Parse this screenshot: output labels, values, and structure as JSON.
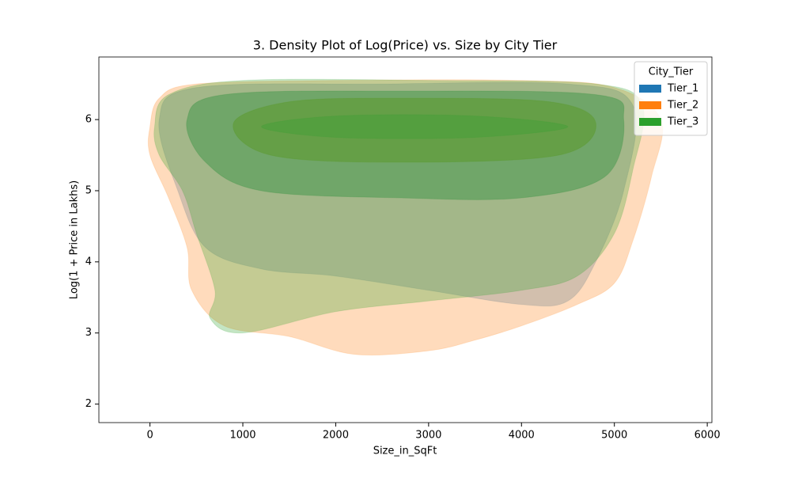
{
  "chart_data": {
    "type": "kde",
    "title": "3. Density Plot of Log(Price) vs. Size by City Tier",
    "xlabel": "Size_in_SqFt",
    "ylabel": "Log(1 + Price in Lakhs)",
    "xlim": [
      -550,
      6050
    ],
    "ylim": [
      1.74,
      6.88
    ],
    "xticks": [
      0,
      1000,
      2000,
      3000,
      4000,
      5000,
      6000
    ],
    "yticks": [
      2,
      3,
      4,
      5,
      6
    ],
    "legend": "upper right",
    "legend_title": "City_Tier",
    "series": [
      {
        "name": "Tier_1",
        "color": "#1f77b4",
        "levels": [
          {
            "x": [
              100,
              500,
              2500,
              4500,
              5200,
              5100,
              4800,
              4500,
              4000,
              3000,
              2000,
              1200,
              600,
              300
            ],
            "y": [
              6.0,
              6.45,
              6.5,
              6.5,
              6.2,
              5.0,
              4.0,
              3.45,
              3.4,
              3.6,
              3.8,
              3.9,
              4.2,
              5.0
            ]
          },
          {
            "x": [
              400,
              800,
              2700,
              4800,
              5100,
              4900,
              4000,
              2700,
              1200,
              600
            ],
            "y": [
              6.0,
              6.35,
              6.4,
              6.35,
              6.0,
              5.2,
              4.9,
              4.9,
              5.0,
              5.4
            ]
          }
        ]
      },
      {
        "name": "Tier_2",
        "color": "#ff7f0e",
        "levels": [
          {
            "x": [
              0,
              100,
              500,
              2000,
              4000,
              5000,
              5500,
              5400,
              5200,
              5000,
              4600,
              4000,
              3500,
              3000,
              2200,
              1500,
              800,
              450,
              400,
              200,
              0
            ],
            "y": [
              5.9,
              6.3,
              6.5,
              6.55,
              6.55,
              6.45,
              6.0,
              5.2,
              4.3,
              3.7,
              3.4,
              3.1,
              2.9,
              2.75,
              2.7,
              2.95,
              3.1,
              3.6,
              4.2,
              4.9,
              5.5
            ]
          },
          {
            "x": [
              900,
              1500,
              2700,
              4300,
              4800,
              4400,
              2700,
              1300
            ],
            "y": [
              5.95,
              6.25,
              6.3,
              6.25,
              5.95,
              5.5,
              5.4,
              5.5
            ]
          }
        ]
      },
      {
        "name": "Tier_3",
        "color": "#2ca02c",
        "levels": [
          {
            "x": [
              50,
              200,
              1000,
              3000,
              4800,
              5300,
              5200,
              5000,
              4600,
              4000,
              3000,
              2000,
              1000,
              650,
              700,
              500,
              350,
              100
            ],
            "y": [
              5.9,
              6.35,
              6.55,
              6.55,
              6.5,
              6.2,
              5.3,
              4.4,
              3.8,
              3.6,
              3.45,
              3.3,
              3.0,
              3.2,
              3.6,
              4.4,
              5.0,
              5.5
            ]
          },
          {
            "x": [
              400,
              800,
              2700,
              4800,
              5100,
              4900,
              4000,
              2700,
              1200,
              600
            ],
            "y": [
              6.0,
              6.35,
              6.4,
              6.35,
              6.0,
              5.2,
              4.9,
              4.9,
              5.0,
              5.4
            ]
          },
          {
            "x": [
              900,
              1500,
              2700,
              4300,
              4800,
              4400,
              2700,
              1300
            ],
            "y": [
              5.95,
              6.25,
              6.3,
              6.25,
              5.95,
              5.5,
              5.4,
              5.5
            ]
          },
          {
            "x": [
              1200,
              2000,
              3500,
              4500,
              3500,
              2000
            ],
            "y": [
              5.9,
              6.05,
              6.05,
              5.9,
              5.75,
              5.75
            ]
          }
        ]
      }
    ]
  }
}
